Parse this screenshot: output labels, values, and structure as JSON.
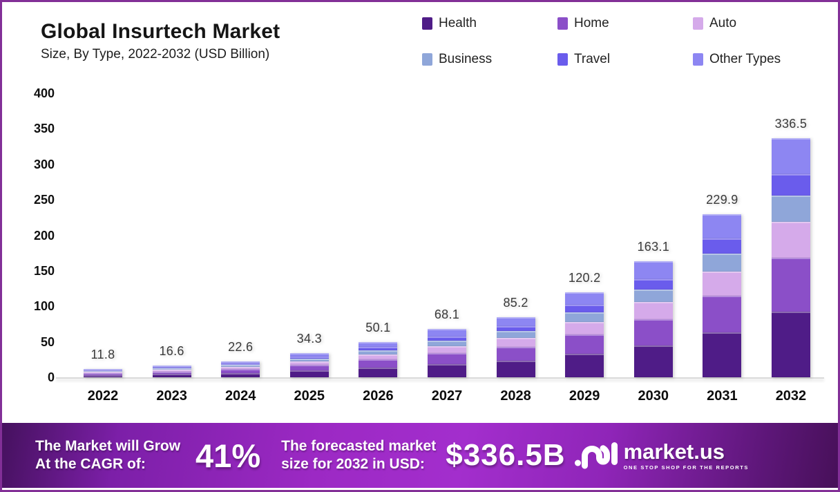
{
  "header": {
    "title": "Global Insurtech Market",
    "subtitle": "Size, By Type, 2022-2032 (USD Billion)"
  },
  "chart_data": {
    "type": "bar",
    "stacked": true,
    "title": "Global Insurtech Market Size, By Type, 2022-2032 (USD Billion)",
    "categories": [
      "2022",
      "2023",
      "2024",
      "2025",
      "2026",
      "2027",
      "2028",
      "2029",
      "2030",
      "2031",
      "2032"
    ],
    "series": [
      {
        "name": "Health",
        "color": "#4f1c87",
        "values": [
          3.2,
          4.6,
          6.2,
          9.4,
          13.8,
          18.7,
          23.4,
          33.1,
          44.9,
          63.2,
          92.5
        ]
      },
      {
        "name": "Home",
        "color": "#8b4fc8",
        "values": [
          2.7,
          3.7,
          5.1,
          7.7,
          11.3,
          15.3,
          19.2,
          27.0,
          36.7,
          51.7,
          75.7
        ]
      },
      {
        "name": "Auto",
        "color": "#d5aaea",
        "values": [
          1.8,
          2.5,
          3.4,
          5.1,
          7.5,
          10.2,
          12.8,
          18.0,
          24.5,
          34.5,
          50.5
        ]
      },
      {
        "name": "Business",
        "color": "#8fa6d9",
        "values": [
          1.3,
          1.8,
          2.5,
          3.8,
          5.5,
          7.5,
          9.4,
          13.2,
          17.9,
          25.3,
          37.0
        ]
      },
      {
        "name": "Travel",
        "color": "#6a5cec",
        "values": [
          1.1,
          1.5,
          2.0,
          3.1,
          4.5,
          6.1,
          7.7,
          10.8,
          14.7,
          20.7,
          30.3
        ]
      },
      {
        "name": "Other Types",
        "color": "#8d86f2",
        "values": [
          1.7,
          2.5,
          3.4,
          5.2,
          7.5,
          10.3,
          12.7,
          18.1,
          24.4,
          34.5,
          50.5
        ]
      }
    ],
    "totals": [
      "11.8",
      "16.6",
      "22.6",
      "34.3",
      "50.1",
      "68.1",
      "85.2",
      "120.2",
      "163.1",
      "229.9",
      "336.5"
    ],
    "yticks": [
      0,
      50,
      100,
      150,
      200,
      250,
      300,
      350,
      400
    ],
    "ylim": [
      0,
      400
    ],
    "xlabel": "",
    "ylabel": "",
    "grid": false,
    "legend_position": "top-right"
  },
  "banner": {
    "cagr_label_line1": "The Market will Grow",
    "cagr_label_line2": "At the CAGR of:",
    "cagr_value": "41%",
    "forecast_label_line1": "The forecasted market",
    "forecast_label_line2": "size for 2032 in USD:",
    "forecast_value": "$336.5B",
    "brand": "market.us",
    "brand_tagline": "ONE STOP SHOP FOR THE REPORTS"
  }
}
